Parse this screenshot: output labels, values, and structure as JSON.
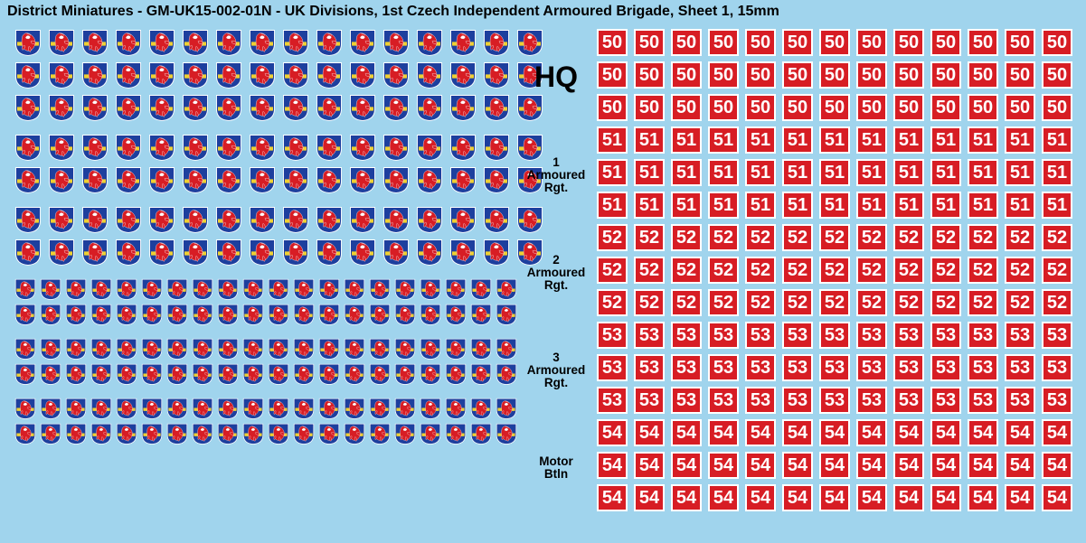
{
  "title": "District Miniatures - GM-UK15-002-01N - UK Divisions, 1st Czech Independent Armoured Brigade, Sheet 1, 15mm",
  "background_color": "#a0d4ed",
  "shield": {
    "colors": {
      "border": "#ffffff",
      "field": "#1d3f9e",
      "band": "#f0d030",
      "lion_body": "#d71d24",
      "lion_highlight": "#ffffff"
    },
    "groups": [
      {
        "size": 30,
        "rows": 3,
        "cols": 16
      },
      {
        "size": 30,
        "rows": 2,
        "cols": 16
      },
      {
        "size": 30,
        "rows": 2,
        "cols": 16
      },
      {
        "size": 24,
        "rows": 2,
        "cols": 20
      },
      {
        "size": 24,
        "rows": 2,
        "cols": 20
      },
      {
        "size": 24,
        "rows": 2,
        "cols": 20
      }
    ]
  },
  "decal": {
    "bg": "#d71d24",
    "border": "#ffffff",
    "text_color": "#ffffff",
    "font_size": 20,
    "width": 34,
    "height": 30,
    "cols": 13,
    "rows_per_unit": 3
  },
  "units": [
    {
      "label_style": "hq",
      "lines": [
        "HQ"
      ],
      "number": "50"
    },
    {
      "label_style": "small",
      "lines": [
        "1",
        "Armoured",
        "Rgt."
      ],
      "number": "51"
    },
    {
      "label_style": "small",
      "lines": [
        "2",
        "Armoured",
        "Rgt."
      ],
      "number": "52"
    },
    {
      "label_style": "small",
      "lines": [
        "3",
        "Armoured",
        "Rgt."
      ],
      "number": "53"
    },
    {
      "label_style": "small",
      "lines": [
        "Motor",
        "Btln"
      ],
      "number": "54"
    }
  ]
}
